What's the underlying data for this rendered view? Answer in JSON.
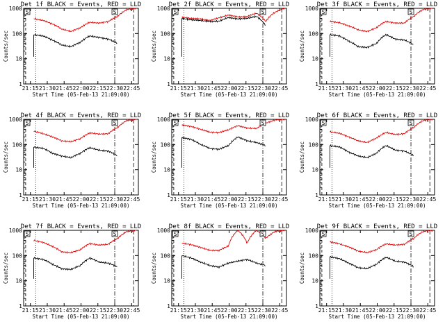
{
  "panels": [
    {
      "title": "Det 1f BLACK = Events, RED = LLD",
      "lld": [
        390,
        330,
        240,
        150,
        120,
        170,
        280,
        260,
        300,
        480,
        900,
        1000
      ],
      "events": [
        90,
        80,
        55,
        35,
        30,
        45,
        80,
        70,
        60,
        40,
        null,
        null
      ]
    },
    {
      "title": "Det 2f BLACK = Events, RED = LLD",
      "lld": [
        450,
        400,
        380,
        330,
        420,
        540,
        460,
        470,
        640,
        300,
        700,
        1000
      ],
      "events": [
        400,
        350,
        330,
        300,
        310,
        430,
        380,
        400,
        480,
        200,
        null,
        null
      ]
    },
    {
      "title": "Det 3f BLACK = Events, RED = LLD",
      "lld": [
        300,
        270,
        200,
        140,
        120,
        170,
        300,
        260,
        260,
        480,
        900,
        1000
      ],
      "events": [
        90,
        80,
        50,
        30,
        28,
        40,
        90,
        60,
        55,
        35,
        null,
        null
      ]
    },
    {
      "title": "Det 4f BLACK = Events, RED = LLD",
      "lld": [
        340,
        270,
        200,
        140,
        130,
        170,
        290,
        260,
        270,
        480,
        900,
        1000
      ],
      "events": [
        80,
        70,
        45,
        35,
        30,
        45,
        75,
        60,
        55,
        35,
        null,
        null
      ]
    },
    {
      "title": "Det 5f BLACK = Events, RED = LLD",
      "lld": [
        600,
        520,
        400,
        310,
        300,
        380,
        560,
        450,
        430,
        700,
        950,
        1000
      ],
      "events": [
        190,
        160,
        100,
        70,
        65,
        90,
        200,
        140,
        120,
        90,
        null,
        null
      ]
    },
    {
      "title": "Det 6f BLACK = Events, RED = LLD",
      "lld": [
        320,
        280,
        200,
        140,
        120,
        180,
        300,
        250,
        270,
        480,
        900,
        1000
      ],
      "events": [
        90,
        80,
        50,
        35,
        30,
        45,
        90,
        60,
        55,
        35,
        null,
        null
      ]
    },
    {
      "title": "Det 7f BLACK = Events, RED = LLD",
      "lld": [
        400,
        330,
        230,
        140,
        130,
        170,
        300,
        260,
        280,
        480,
        900,
        1000
      ],
      "events": [
        80,
        70,
        45,
        30,
        28,
        40,
        80,
        55,
        50,
        35,
        null,
        null
      ]
    },
    {
      "title": "Det 8f BLACK = Events, RED = LLD",
      "lld": [
        310,
        270,
        210,
        160,
        160,
        240,
        1000,
        300,
        1000,
        480,
        900,
        1000
      ],
      "events": [
        100,
        80,
        55,
        40,
        35,
        50,
        60,
        70,
        50,
        40,
        null,
        null
      ]
    },
    {
      "title": "Det 9f BLACK = Events, RED = LLD",
      "lld": [
        350,
        290,
        220,
        150,
        130,
        170,
        290,
        260,
        280,
        480,
        900,
        1000
      ],
      "events": [
        90,
        75,
        50,
        33,
        30,
        45,
        85,
        60,
        55,
        35,
        null,
        null
      ]
    }
  ],
  "chart_data": {
    "type": "line",
    "x_ticks": [
      "21:15",
      "21:30",
      "21:45",
      "22:00",
      "22:15",
      "22:30",
      "22:45"
    ],
    "y_ticks": [
      "1",
      "10",
      "100",
      "1000"
    ],
    "ylim": [
      1,
      1000
    ],
    "ylabel": "Counts/sec",
    "xlabel": "Start Time (05-Feb-13 21:09:00)",
    "box_label": "S",
    "series_colors": {
      "events": "#000000",
      "lld": "#e00000"
    }
  }
}
